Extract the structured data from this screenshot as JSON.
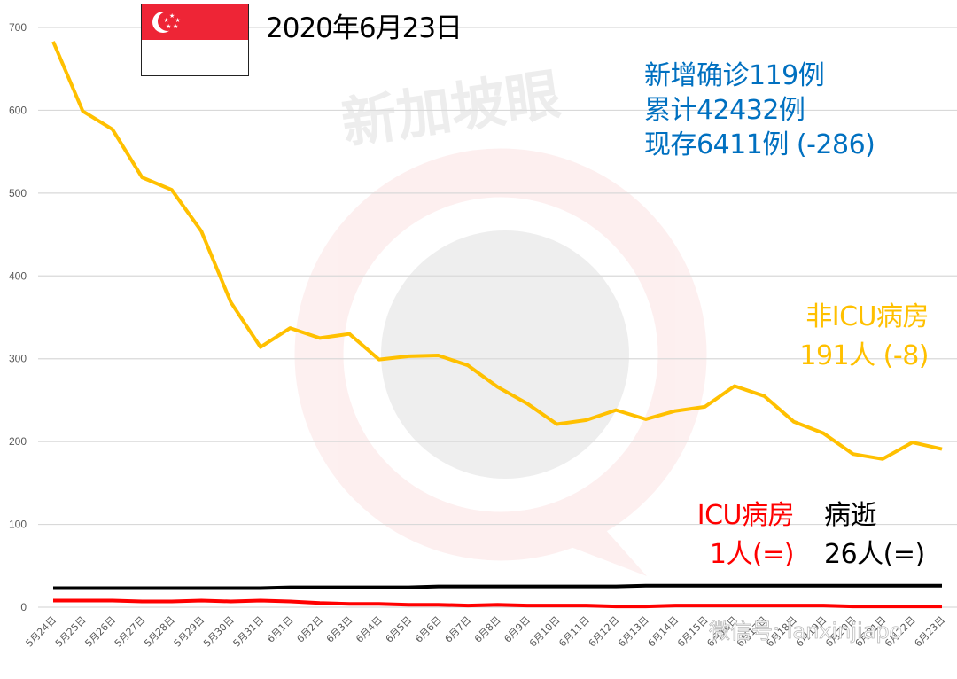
{
  "header": {
    "date": "2020年6月23日",
    "flag": "singapore-flag"
  },
  "stats": {
    "new_cases": "新增确诊119例",
    "total_cases": "累计42432例",
    "active_cases": "现存6411例 (-286)"
  },
  "annotations": {
    "non_icu_title": "非ICU病房",
    "non_icu_value": "191人 (-8)",
    "icu_title": "ICU病房",
    "icu_value": "1人(=)",
    "death_title": "病逝",
    "death_value": "26人(=)"
  },
  "watermarks": {
    "brand": "新加坡眼",
    "wechat": "微信号: lanxinjiapo"
  },
  "colors": {
    "non_icu": "#ffc000",
    "icu": "#ff0000",
    "death": "#000000",
    "stats_text": "#0070c0",
    "grid": "#d9d9d9",
    "axis_text": "#595959"
  },
  "chart_data": {
    "type": "line",
    "title": "2020年6月23日",
    "xlabel": "",
    "ylabel": "",
    "ylim": [
      0,
      700
    ],
    "yticks": [
      0,
      100,
      200,
      300,
      400,
      500,
      600,
      700
    ],
    "grid": true,
    "legend_position": "inline annotations (right side)",
    "categories": [
      "5月24日",
      "5月25日",
      "5月26日",
      "5月27日",
      "5月28日",
      "5月29日",
      "5月30日",
      "5月31日",
      "6月1日",
      "6月2日",
      "6月3日",
      "6月4日",
      "6月5日",
      "6月6日",
      "6月7日",
      "6月8日",
      "6月9日",
      "6月10日",
      "6月11日",
      "6月12日",
      "6月13日",
      "6月14日",
      "6月15日",
      "6月16日",
      "6月17日",
      "6月18日",
      "6月19日",
      "6月20日",
      "6月21日",
      "6月22日",
      "6月23日"
    ],
    "series": [
      {
        "name": "非ICU病房",
        "color": "#ffc000",
        "values": [
          683,
          599,
          577,
          519,
          504,
          454,
          368,
          314,
          337,
          325,
          330,
          299,
          303,
          304,
          292,
          266,
          246,
          221,
          226,
          238,
          227,
          237,
          242,
          267,
          255,
          224,
          210,
          185,
          179,
          199,
          191
        ]
      },
      {
        "name": "ICU病房",
        "color": "#ff0000",
        "values": [
          8,
          8,
          8,
          7,
          7,
          8,
          7,
          8,
          7,
          5,
          4,
          4,
          3,
          3,
          2,
          3,
          2,
          2,
          2,
          1,
          1,
          2,
          2,
          2,
          2,
          2,
          2,
          1,
          1,
          1,
          1
        ]
      },
      {
        "name": "病逝",
        "color": "#000000",
        "values": [
          23,
          23,
          23,
          23,
          23,
          23,
          23,
          23,
          24,
          24,
          24,
          24,
          24,
          25,
          25,
          25,
          25,
          25,
          25,
          25,
          26,
          26,
          26,
          26,
          26,
          26,
          26,
          26,
          26,
          26,
          26
        ]
      }
    ]
  }
}
